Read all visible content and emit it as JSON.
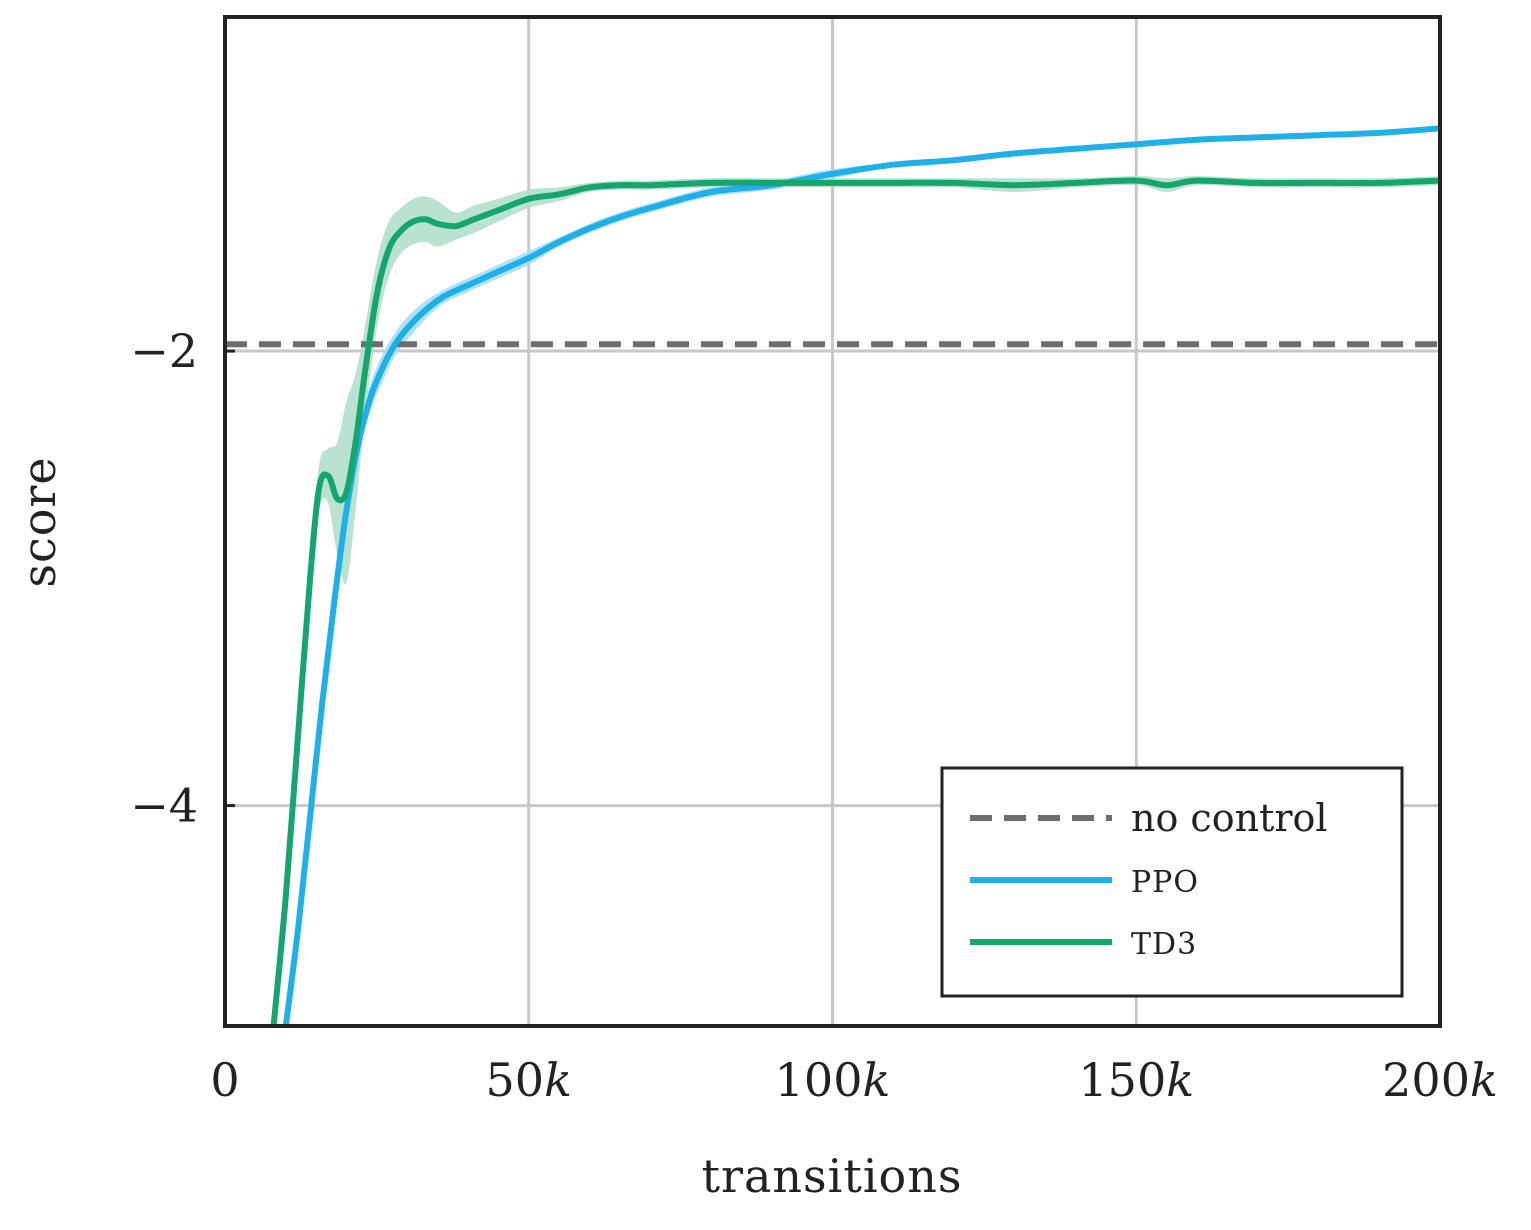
{
  "chart_data": {
    "type": "line",
    "xlabel": "transitions",
    "ylabel": "score",
    "xlim": [
      0,
      200000
    ],
    "ylim": [
      -4.97,
      -0.53
    ],
    "x_ticks": [
      {
        "value": 0,
        "label": "0",
        "italic_suffix": ""
      },
      {
        "value": 50000,
        "label": "50",
        "italic_suffix": "k"
      },
      {
        "value": 100000,
        "label": "100",
        "italic_suffix": "k"
      },
      {
        "value": 150000,
        "label": "150",
        "italic_suffix": "k"
      },
      {
        "value": 200000,
        "label": "200",
        "italic_suffix": "k"
      }
    ],
    "y_ticks": [
      {
        "value": -2,
        "label": "−2"
      },
      {
        "value": -4,
        "label": "−4"
      }
    ],
    "grid": true,
    "legend": {
      "placement": "bottom-right",
      "entries": [
        {
          "name": "no control",
          "style": "dashed",
          "color": "#6d6d6d"
        },
        {
          "name": "PPO",
          "style": "solid",
          "color": "#1fb0e8"
        },
        {
          "name": "TD3",
          "style": "solid",
          "color": "#16a56c"
        }
      ]
    },
    "series": [
      {
        "name": "no control",
        "color": "#6d6d6d",
        "style": "dashed",
        "x": [
          0,
          200000
        ],
        "y": [
          -1.97,
          -1.97
        ]
      },
      {
        "name": "PPO",
        "color": "#1fb0e8",
        "band_color": "#9fdcf4",
        "x": [
          10000,
          12000,
          14000,
          16000,
          18000,
          20000,
          22000,
          24000,
          26000,
          28000,
          30000,
          33000,
          36000,
          40000,
          45000,
          50000,
          55000,
          60000,
          65000,
          70000,
          80000,
          90000,
          100000,
          110000,
          120000,
          130000,
          140000,
          150000,
          160000,
          170000,
          180000,
          190000,
          200000
        ],
        "y": [
          -4.97,
          -4.55,
          -4.05,
          -3.55,
          -3.1,
          -2.7,
          -2.4,
          -2.2,
          -2.07,
          -1.97,
          -1.9,
          -1.82,
          -1.76,
          -1.71,
          -1.65,
          -1.59,
          -1.52,
          -1.46,
          -1.41,
          -1.37,
          -1.3,
          -1.27,
          -1.22,
          -1.18,
          -1.16,
          -1.13,
          -1.11,
          -1.09,
          -1.07,
          -1.06,
          -1.05,
          -1.04,
          -1.02
        ],
        "band_half_width": [
          0.03,
          0.05,
          0.06,
          0.07,
          0.08,
          0.08,
          0.07,
          0.06,
          0.06,
          0.05,
          0.05,
          0.04,
          0.03,
          0.03,
          0.03,
          0.03,
          0.02,
          0.02,
          0.02,
          0.02,
          0.02,
          0.02,
          0.02,
          0.01,
          0.01,
          0.01,
          0.01,
          0.01,
          0.01,
          0.01,
          0.01,
          0.01,
          0.01
        ]
      },
      {
        "name": "TD3",
        "color": "#16a56c",
        "band_color": "#aeddc9",
        "x": [
          8000,
          10000,
          12000,
          14000,
          15500,
          17000,
          18500,
          20000,
          21500,
          23000,
          25000,
          27000,
          29000,
          31000,
          33000,
          35000,
          38000,
          41000,
          45000,
          50000,
          55000,
          60000,
          65000,
          70000,
          80000,
          90000,
          100000,
          110000,
          120000,
          130000,
          140000,
          150000,
          155000,
          160000,
          170000,
          180000,
          190000,
          200000
        ],
        "y": [
          -4.97,
          -4.4,
          -3.7,
          -3.0,
          -2.6,
          -2.55,
          -2.65,
          -2.62,
          -2.4,
          -2.1,
          -1.75,
          -1.55,
          -1.47,
          -1.43,
          -1.42,
          -1.44,
          -1.45,
          -1.42,
          -1.38,
          -1.33,
          -1.31,
          -1.28,
          -1.27,
          -1.27,
          -1.26,
          -1.26,
          -1.26,
          -1.26,
          -1.26,
          -1.27,
          -1.26,
          -1.25,
          -1.27,
          -1.25,
          -1.26,
          -1.26,
          -1.26,
          -1.25
        ],
        "band_half_width": [
          0.1,
          0.15,
          0.12,
          0.08,
          0.1,
          0.12,
          0.25,
          0.4,
          0.3,
          0.2,
          0.15,
          0.12,
          0.1,
          0.1,
          0.1,
          0.1,
          0.06,
          0.06,
          0.05,
          0.04,
          0.03,
          0.02,
          0.02,
          0.02,
          0.02,
          0.02,
          0.02,
          0.02,
          0.02,
          0.03,
          0.02,
          0.02,
          0.03,
          0.02,
          0.02,
          0.02,
          0.02,
          0.02
        ]
      }
    ]
  }
}
